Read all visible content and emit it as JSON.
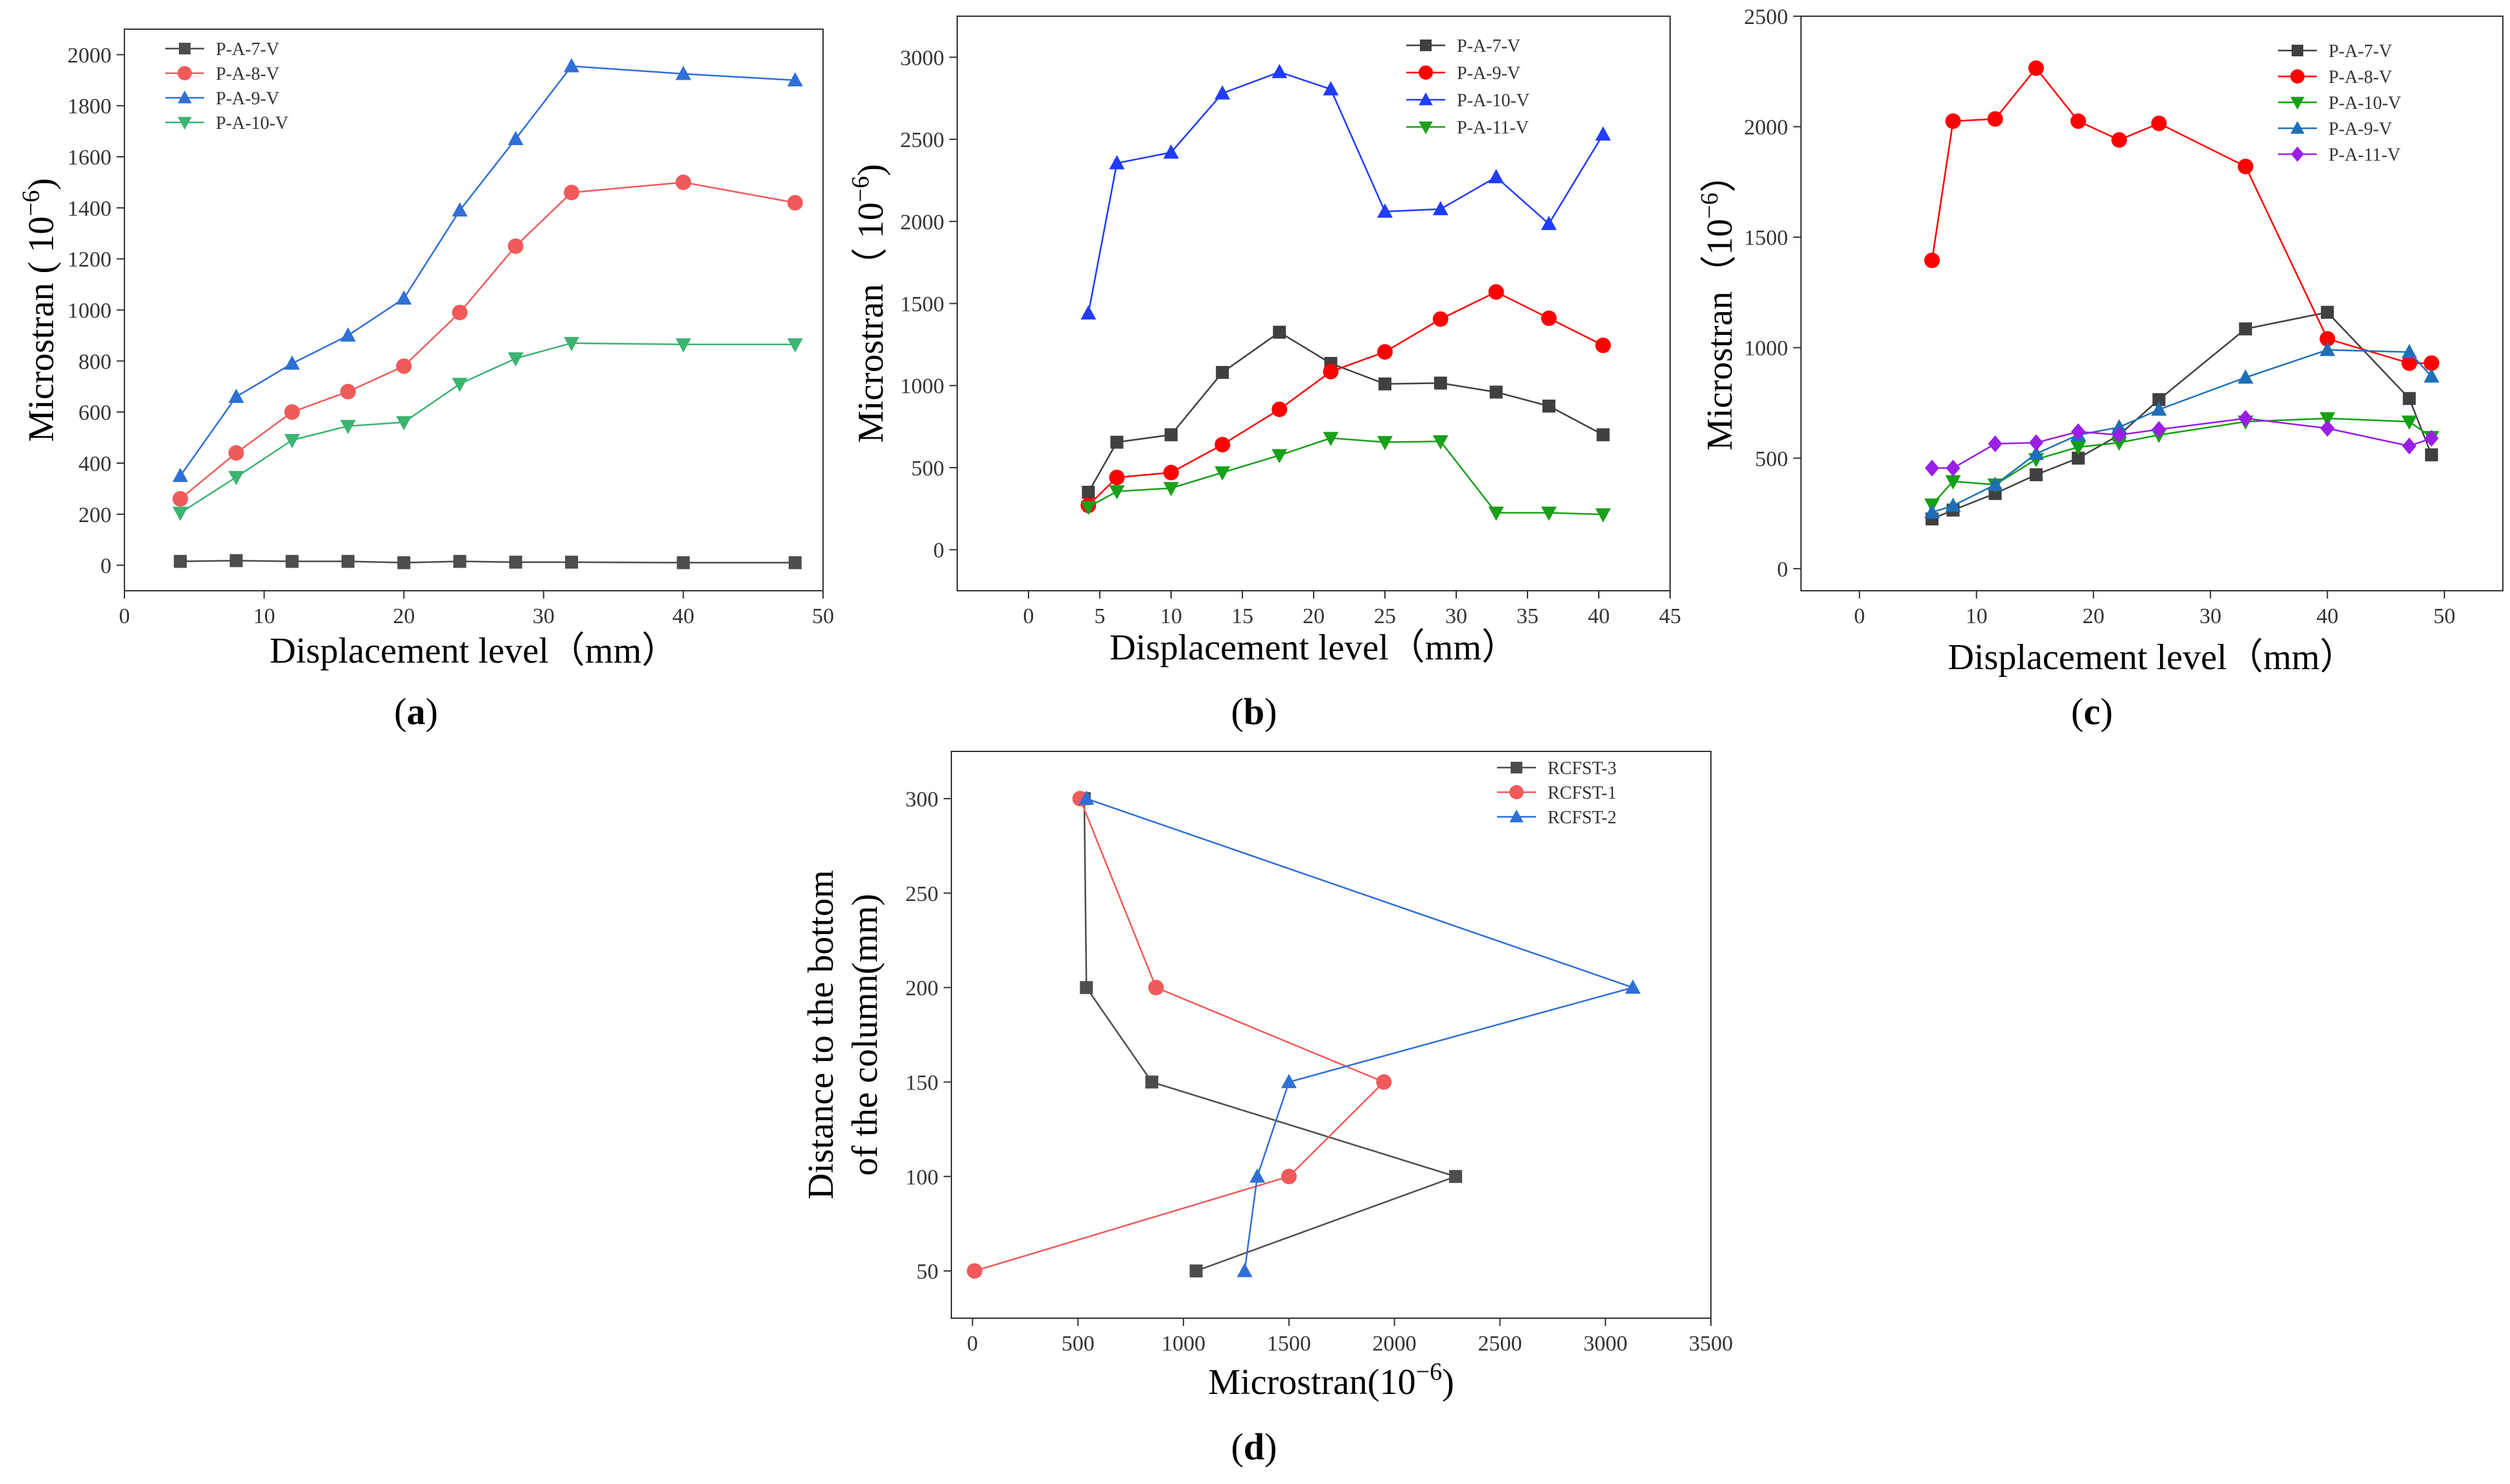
{
  "chart_data": [
    {
      "id": "a",
      "type": "line",
      "panel_label": "a",
      "xlabel": "Displacement level（mm）",
      "ylabel": "Microstran ( 10",
      "ylabel_exp": "−6",
      "ylabel_close": ")",
      "xlim": [
        0,
        50
      ],
      "ylim": [
        -100,
        2100
      ],
      "xticks": [
        0,
        10,
        20,
        30,
        40,
        50
      ],
      "yticks": [
        0,
        200,
        400,
        600,
        800,
        1000,
        1200,
        1400,
        1600,
        1800,
        2000
      ],
      "legend_position": "top-left",
      "series": [
        {
          "name": "P-A-7-V",
          "color": "#4d4d4d",
          "marker": "square",
          "x": [
            4,
            8,
            12,
            16,
            20,
            24,
            28,
            32,
            40,
            48
          ],
          "y": [
            15,
            18,
            15,
            15,
            10,
            15,
            12,
            12,
            10,
            10
          ]
        },
        {
          "name": "P-A-8-V",
          "color": "#f05a5a",
          "marker": "circle",
          "x": [
            4,
            8,
            12,
            16,
            20,
            24,
            28,
            32,
            40,
            48
          ],
          "y": [
            260,
            440,
            600,
            680,
            780,
            990,
            1250,
            1460,
            1500,
            1420
          ]
        },
        {
          "name": "P-A-9-V",
          "color": "#2f6fd6",
          "marker": "triangle-up",
          "x": [
            4,
            8,
            12,
            16,
            20,
            24,
            28,
            32,
            40,
            48
          ],
          "y": [
            350,
            660,
            790,
            900,
            1045,
            1390,
            1670,
            1955,
            1925,
            1900
          ]
        },
        {
          "name": "P-A-10-V",
          "color": "#3cb371",
          "marker": "triangle-down",
          "x": [
            4,
            8,
            12,
            16,
            20,
            24,
            28,
            32,
            40,
            48
          ],
          "y": [
            205,
            345,
            490,
            545,
            560,
            710,
            810,
            870,
            865,
            865
          ]
        }
      ]
    },
    {
      "id": "b",
      "type": "line",
      "panel_label": "b",
      "xlabel": "Displacement level（mm）",
      "ylabel": "Microstran（ 10",
      "ylabel_exp": "−6",
      "ylabel_close": ")",
      "xlim": [
        -5,
        45
      ],
      "ylim": [
        -250,
        3250
      ],
      "xticks": [
        0,
        5,
        10,
        15,
        20,
        25,
        30,
        35,
        40,
        45
      ],
      "yticks": [
        0,
        500,
        1000,
        1500,
        2000,
        2500,
        3000
      ],
      "legend_position": "top-right",
      "series": [
        {
          "name": "P-A-7-V",
          "color": "#404040",
          "marker": "square",
          "x": [
            4.2,
            6.2,
            10,
            13.6,
            17.6,
            21.2,
            25,
            28.9,
            32.8,
            36.5,
            40.3
          ],
          "y": [
            350,
            655,
            700,
            1080,
            1325,
            1135,
            1010,
            1015,
            960,
            875,
            700
          ]
        },
        {
          "name": "P-A-9-V",
          "color": "#ff0000",
          "marker": "circle",
          "x": [
            4.2,
            6.2,
            10,
            13.6,
            17.6,
            21.2,
            25,
            28.9,
            32.8,
            36.5,
            40.3
          ],
          "y": [
            270,
            440,
            470,
            640,
            855,
            1085,
            1205,
            1405,
            1570,
            1410,
            1245
          ]
        },
        {
          "name": "P-A-10-V",
          "color": "#1f3cff",
          "marker": "triangle-up",
          "x": [
            4.2,
            6.2,
            10,
            13.6,
            17.6,
            21.2,
            25,
            28.9,
            32.8,
            36.5,
            40.3
          ],
          "y": [
            1440,
            2355,
            2420,
            2780,
            2910,
            2805,
            2060,
            2075,
            2270,
            1985,
            2530
          ]
        },
        {
          "name": "P-A-11-V",
          "color": "#1aa01a",
          "marker": "triangle-down",
          "x": [
            4.2,
            6.2,
            10,
            13.6,
            17.6,
            21.2,
            25,
            28.9,
            32.8,
            36.5,
            40.3
          ],
          "y": [
            260,
            355,
            375,
            470,
            575,
            680,
            655,
            660,
            225,
            225,
            215
          ]
        }
      ]
    },
    {
      "id": "c",
      "type": "line",
      "panel_label": "c",
      "xlabel": "Displacement level（mm）",
      "ylabel": "Microstran（10",
      "ylabel_exp": "−6",
      "ylabel_close": "）",
      "xlim": [
        -5,
        55
      ],
      "ylim": [
        -100,
        2500
      ],
      "xticks": [
        0,
        10,
        20,
        30,
        40,
        50
      ],
      "yticks": [
        0,
        500,
        1000,
        1500,
        2000,
        2500
      ],
      "legend_position": "top-right",
      "series": [
        {
          "name": "P-A-7-V",
          "color": "#404040",
          "marker": "square",
          "x": [
            6.2,
            8,
            11.6,
            15.1,
            18.7,
            22.2,
            25.6,
            33,
            40,
            47,
            48.9
          ],
          "y": [
            225,
            265,
            340,
            425,
            500,
            605,
            765,
            1085,
            1160,
            770,
            515
          ]
        },
        {
          "name": "P-A-8-V",
          "color": "#ff0000",
          "marker": "circle",
          "x": [
            6.2,
            8,
            11.6,
            15.1,
            18.7,
            22.2,
            25.6,
            33,
            40,
            47,
            48.9
          ],
          "y": [
            1395,
            2025,
            2035,
            2265,
            2025,
            1940,
            2015,
            1820,
            1040,
            930,
            930
          ]
        },
        {
          "name": "P-A-10-V",
          "color": "#14a014",
          "marker": "triangle-down",
          "x": [
            6.2,
            8,
            11.6,
            15.1,
            18.7,
            22.2,
            25.6,
            33,
            40,
            47,
            48.9
          ],
          "y": [
            290,
            395,
            380,
            495,
            550,
            570,
            605,
            665,
            680,
            665,
            595
          ]
        },
        {
          "name": "P-A-9-V",
          "color": "#1f6fb8",
          "marker": "triangle-up",
          "x": [
            6.2,
            8,
            11.6,
            15.1,
            18.7,
            22.2,
            25.6,
            33,
            40,
            47,
            48.9
          ],
          "y": [
            255,
            285,
            380,
            520,
            605,
            640,
            720,
            865,
            990,
            980,
            870
          ]
        },
        {
          "name": "P-A-11-V",
          "color": "#9a1ee6",
          "marker": "diamond",
          "x": [
            6.2,
            8,
            11.6,
            15.1,
            18.7,
            22.2,
            25.6,
            33,
            40,
            47,
            48.9
          ],
          "y": [
            455,
            455,
            565,
            570,
            620,
            605,
            630,
            680,
            635,
            555,
            590
          ]
        }
      ]
    },
    {
      "id": "d",
      "type": "line",
      "panel_label": "d",
      "xlabel": "Microstran",
      "xlabel_unit": "(10",
      "xlabel_exp": "−6",
      "xlabel_close": ")",
      "ylabel_line1": "Distance to the bottom",
      "ylabel_line2": "of the column(mm)",
      "xlim": [
        -100,
        3500
      ],
      "ylim": [
        25,
        325
      ],
      "xticks": [
        0,
        500,
        1000,
        1500,
        2000,
        2500,
        3000,
        3500
      ],
      "yticks": [
        50,
        100,
        150,
        200,
        250,
        300
      ],
      "legend_position": "top-right",
      "series": [
        {
          "name": "RCFST-3",
          "color": "#4d4d4d",
          "marker": "square",
          "x": [
            1060,
            2290,
            850,
            540,
            530
          ],
          "y": [
            50,
            100,
            150,
            200,
            300
          ]
        },
        {
          "name": "RCFST-1",
          "color": "#f05a5a",
          "marker": "circle",
          "x": [
            10,
            1500,
            1950,
            870,
            510
          ],
          "y": [
            50,
            100,
            150,
            200,
            300
          ]
        },
        {
          "name": "RCFST-2",
          "color": "#2f6fd6",
          "marker": "triangle-up",
          "x": [
            1290,
            1350,
            1500,
            3130,
            540
          ],
          "y": [
            50,
            100,
            150,
            200,
            300
          ]
        }
      ]
    }
  ]
}
